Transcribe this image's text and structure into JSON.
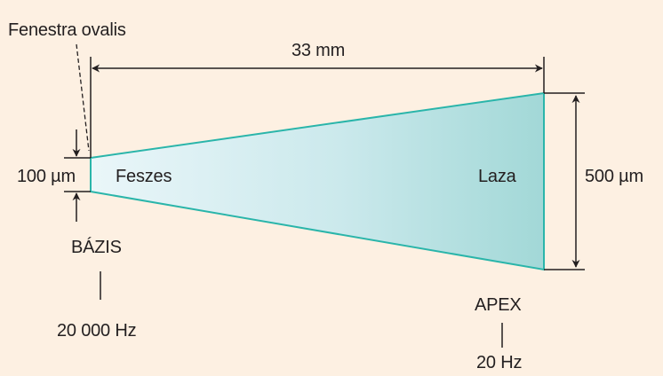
{
  "labels": {
    "fenestra": "Fenestra ovalis",
    "length": "33 mm",
    "base_width": "100 µm",
    "apex_width": "500 µm",
    "stiff": "Feszes",
    "loose": "Laza",
    "base": "BÁZIS",
    "apex": "APEX",
    "base_freq": "20 000 Hz",
    "apex_freq": "20 Hz"
  },
  "colors": {
    "background": "#fdf0e2",
    "membrane_light": "#e6f5f8",
    "membrane_dark": "#a4d9d8",
    "membrane_edge": "#2ab5aa",
    "line": "#231f20"
  }
}
